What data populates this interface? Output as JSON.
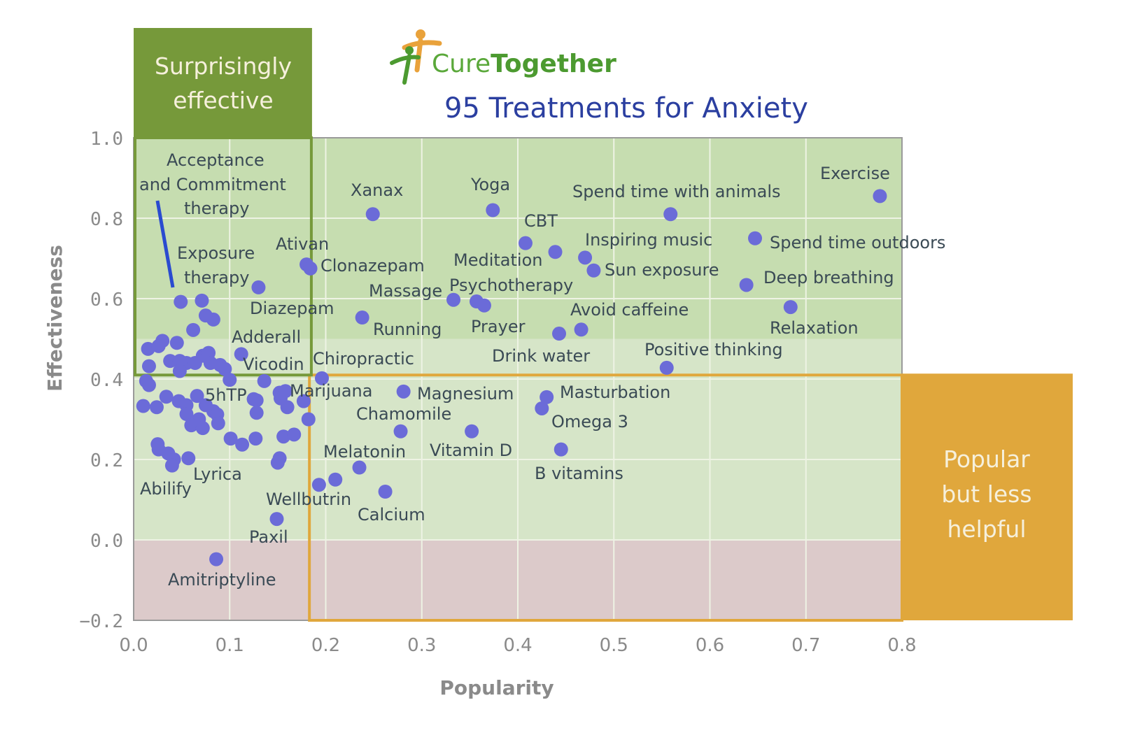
{
  "brand": {
    "part1": "Cure",
    "part2": "Together"
  },
  "colors": {
    "band_high": "#c6ddb0",
    "band_mid": "#d6e5c8",
    "band_neg": "#dccaca",
    "green_box": "#76993a",
    "orange_box": "#e0a73c",
    "point": "#6b6bd8",
    "pointer_line": "#2a4bd0"
  },
  "chart_data": {
    "type": "scatter",
    "title": "95 Treatments for Anxiety",
    "xlabel": "Popularity",
    "ylabel": "Effectiveness",
    "xlim": [
      0.0,
      0.8
    ],
    "ylim": [
      -0.2,
      1.0
    ],
    "xticks": [
      "0.0",
      "0.1",
      "0.2",
      "0.3",
      "0.4",
      "0.5",
      "0.6",
      "0.7",
      "0.8"
    ],
    "yticks": [
      "1.0",
      "0.8",
      "0.6",
      "0.4",
      "0.2",
      "0.0",
      "−0.2"
    ],
    "grid": true,
    "regions": [
      {
        "name": "Surprisingly effective",
        "lines": [
          "Surprisingly",
          "effective"
        ],
        "x": [
          0.0,
          0.185
        ],
        "y": [
          0.41,
          1.0
        ]
      },
      {
        "name": "Popular but less helpful",
        "lines": [
          "Popular",
          "but less",
          "helpful"
        ],
        "x": [
          0.183,
          0.8
        ],
        "y": [
          -0.2,
          0.41
        ]
      }
    ],
    "labeled_points": [
      {
        "label": "Exercise",
        "x": 0.777,
        "y": 0.855
      },
      {
        "label": "Spend time with animals",
        "x": 0.559,
        "y": 0.81
      },
      {
        "label": "Xanax",
        "x": 0.249,
        "y": 0.81
      },
      {
        "label": "Yoga",
        "x": 0.374,
        "y": 0.82
      },
      {
        "label": "CBT",
        "x": 0.408,
        "y": 0.738
      },
      {
        "label": "Spend time outdoors",
        "x": 0.647,
        "y": 0.75
      },
      {
        "label": "Inspiring music",
        "x": 0.47,
        "y": 0.702
      },
      {
        "label": "Meditation",
        "x": 0.439,
        "y": 0.716
      },
      {
        "label": "Sun exposure",
        "x": 0.479,
        "y": 0.67
      },
      {
        "label": "Deep breathing",
        "x": 0.638,
        "y": 0.634
      },
      {
        "label": "Relaxation",
        "x": 0.684,
        "y": 0.579
      },
      {
        "label": "Ativan",
        "x": 0.18,
        "y": 0.685
      },
      {
        "label": "Clonazepam",
        "x": 0.184,
        "y": 0.675
      },
      {
        "label": "Psychotherapy",
        "x": 0.357,
        "y": 0.593
      },
      {
        "label": "Prayer",
        "x": 0.365,
        "y": 0.583
      },
      {
        "label": "Massage",
        "x": 0.333,
        "y": 0.597
      },
      {
        "label": "Avoid caffeine",
        "x": 0.466,
        "y": 0.523
      },
      {
        "label": "Drink water",
        "x": 0.443,
        "y": 0.513
      },
      {
        "label": "Running",
        "x": 0.238,
        "y": 0.553
      },
      {
        "label": "Diazepam",
        "x": 0.13,
        "y": 0.628
      },
      {
        "label": "Exposure therapy",
        "x": 0.049,
        "y": 0.592
      },
      {
        "label": "Acceptance and Commitment therapy",
        "x": 0.071,
        "y": 0.595
      },
      {
        "label": "Adderall",
        "x": 0.112,
        "y": 0.462
      },
      {
        "label": "Vicodin",
        "x": 0.136,
        "y": 0.395
      },
      {
        "label": "Positive thinking",
        "x": 0.555,
        "y": 0.428
      },
      {
        "label": "Chiropractic",
        "x": 0.196,
        "y": 0.402
      },
      {
        "label": "Marijuana",
        "x": 0.158,
        "y": 0.37
      },
      {
        "label": "5hTP",
        "x": 0.125,
        "y": 0.35
      },
      {
        "label": "Magnesium",
        "x": 0.281,
        "y": 0.369
      },
      {
        "label": "Masturbation",
        "x": 0.43,
        "y": 0.355
      },
      {
        "label": "Omega 3",
        "x": 0.425,
        "y": 0.327
      },
      {
        "label": "Chamomile",
        "x": 0.278,
        "y": 0.27
      },
      {
        "label": "Vitamin D",
        "x": 0.352,
        "y": 0.27
      },
      {
        "label": "B vitamins",
        "x": 0.445,
        "y": 0.225
      },
      {
        "label": "Melatonin",
        "x": 0.235,
        "y": 0.18
      },
      {
        "label": "Wellbutrin",
        "x": 0.193,
        "y": 0.137
      },
      {
        "label": "Calcium",
        "x": 0.262,
        "y": 0.12
      },
      {
        "label": "Lyrica",
        "x": 0.057,
        "y": 0.203
      },
      {
        "label": "Abilify",
        "x": 0.04,
        "y": 0.185
      },
      {
        "label": "Paxil",
        "x": 0.149,
        "y": 0.052
      },
      {
        "label": "Amitriptyline",
        "x": 0.086,
        "y": -0.048
      }
    ],
    "unlabeled_points": [
      {
        "x": 0.015,
        "y": 0.475
      },
      {
        "x": 0.026,
        "y": 0.482
      },
      {
        "x": 0.03,
        "y": 0.495
      },
      {
        "x": 0.045,
        "y": 0.49
      },
      {
        "x": 0.062,
        "y": 0.522
      },
      {
        "x": 0.083,
        "y": 0.548
      },
      {
        "x": 0.075,
        "y": 0.558
      },
      {
        "x": 0.016,
        "y": 0.432
      },
      {
        "x": 0.038,
        "y": 0.445
      },
      {
        "x": 0.048,
        "y": 0.445
      },
      {
        "x": 0.055,
        "y": 0.44
      },
      {
        "x": 0.064,
        "y": 0.44
      },
      {
        "x": 0.072,
        "y": 0.458
      },
      {
        "x": 0.078,
        "y": 0.465
      },
      {
        "x": 0.08,
        "y": 0.44
      },
      {
        "x": 0.09,
        "y": 0.435
      },
      {
        "x": 0.095,
        "y": 0.425
      },
      {
        "x": 0.048,
        "y": 0.42
      },
      {
        "x": 0.013,
        "y": 0.395
      },
      {
        "x": 0.016,
        "y": 0.385
      },
      {
        "x": 0.1,
        "y": 0.398
      },
      {
        "x": 0.034,
        "y": 0.356
      },
      {
        "x": 0.047,
        "y": 0.345
      },
      {
        "x": 0.055,
        "y": 0.335
      },
      {
        "x": 0.066,
        "y": 0.358
      },
      {
        "x": 0.075,
        "y": 0.335
      },
      {
        "x": 0.083,
        "y": 0.32
      },
      {
        "x": 0.01,
        "y": 0.333
      },
      {
        "x": 0.024,
        "y": 0.33
      },
      {
        "x": 0.055,
        "y": 0.313
      },
      {
        "x": 0.068,
        "y": 0.3
      },
      {
        "x": 0.087,
        "y": 0.312
      },
      {
        "x": 0.06,
        "y": 0.285
      },
      {
        "x": 0.072,
        "y": 0.278
      },
      {
        "x": 0.088,
        "y": 0.29
      },
      {
        "x": 0.128,
        "y": 0.347
      },
      {
        "x": 0.128,
        "y": 0.316
      },
      {
        "x": 0.153,
        "y": 0.352
      },
      {
        "x": 0.152,
        "y": 0.366
      },
      {
        "x": 0.16,
        "y": 0.33
      },
      {
        "x": 0.177,
        "y": 0.345
      },
      {
        "x": 0.182,
        "y": 0.3
      },
      {
        "x": 0.156,
        "y": 0.257
      },
      {
        "x": 0.167,
        "y": 0.262
      },
      {
        "x": 0.127,
        "y": 0.252
      },
      {
        "x": 0.101,
        "y": 0.252
      },
      {
        "x": 0.113,
        "y": 0.237
      },
      {
        "x": 0.025,
        "y": 0.238
      },
      {
        "x": 0.026,
        "y": 0.225
      },
      {
        "x": 0.036,
        "y": 0.215
      },
      {
        "x": 0.042,
        "y": 0.2
      },
      {
        "x": 0.152,
        "y": 0.203
      },
      {
        "x": 0.15,
        "y": 0.192
      },
      {
        "x": 0.21,
        "y": 0.15
      }
    ]
  }
}
